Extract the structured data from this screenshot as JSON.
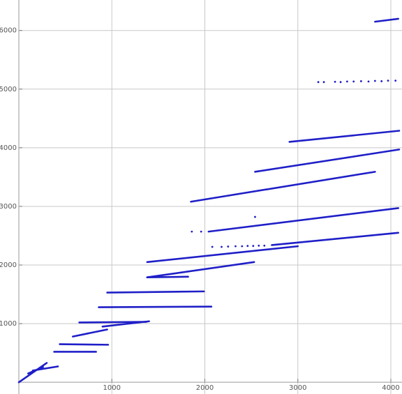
{
  "chart_data": {
    "type": "scatter",
    "xlim": [
      0,
      4120
    ],
    "ylim": [
      -200,
      6520
    ],
    "xticks": [
      1000,
      2000,
      3000,
      4000
    ],
    "yticks": [
      1000,
      2000,
      3000,
      4000,
      5000,
      6000
    ],
    "grid": true,
    "series": [
      {
        "color": "#1f1fc8",
        "line": true,
        "x": [
          3830,
          4080
        ],
        "y": [
          6150,
          6200
        ]
      },
      {
        "color": "#1f1fc8",
        "line": false,
        "x": [
          3220,
          3280,
          3400,
          3460,
          3530,
          3600,
          3680,
          3760,
          3830,
          3900,
          3970,
          4050
        ],
        "y": [
          5120,
          5120,
          5125,
          5120,
          5130,
          5130,
          5135,
          5130,
          5140,
          5135,
          5145,
          5145
        ]
      },
      {
        "color": "#1f1fc8",
        "line": true,
        "x": [
          2910,
          4090
        ],
        "y": [
          4100,
          4290
        ]
      },
      {
        "color": "#1f1fc8",
        "line": true,
        "x": [
          2540,
          4090
        ],
        "y": [
          3590,
          3970
        ]
      },
      {
        "color": "#1f1fc8",
        "line": true,
        "x": [
          1850,
          3830
        ],
        "y": [
          3080,
          3590
        ]
      },
      {
        "color": "#1f1fc8",
        "line": true,
        "x": [
          2040,
          4080
        ],
        "y": [
          2570,
          2970
        ]
      },
      {
        "color": "#1f1fc8",
        "line": false,
        "x": [
          1860,
          1960,
          2540
        ],
        "y": [
          2570,
          2570,
          2820
        ]
      },
      {
        "color": "#1f1fc8",
        "line": false,
        "x": [
          2080,
          2180,
          2250,
          2330,
          2400,
          2460,
          2520,
          2580,
          2640
        ],
        "y": [
          2310,
          2310,
          2315,
          2320,
          2320,
          2325,
          2325,
          2330,
          2330
        ]
      },
      {
        "color": "#1f1fc8",
        "line": true,
        "x": [
          2720,
          4080
        ],
        "y": [
          2340,
          2550
        ]
      },
      {
        "color": "#1f1fc8",
        "line": true,
        "x": [
          1380,
          3000
        ],
        "y": [
          2050,
          2320
        ]
      },
      {
        "color": "#1f1fc8",
        "line": true,
        "x": [
          1380,
          2530
        ],
        "y": [
          1790,
          2050
        ]
      },
      {
        "color": "#1f1fc8",
        "line": true,
        "x": [
          1380,
          1820
        ],
        "y": [
          1790,
          1800
        ]
      },
      {
        "color": "#1f1fc8",
        "line": true,
        "x": [
          950,
          1990
        ],
        "y": [
          1530,
          1550
        ]
      },
      {
        "color": "#1f1fc8",
        "line": true,
        "x": [
          860,
          2070
        ],
        "y": [
          1280,
          1290
        ]
      },
      {
        "color": "#1f1fc8",
        "line": true,
        "x": [
          650,
          1370
        ],
        "y": [
          1020,
          1030
        ]
      },
      {
        "color": "#1f1fc8",
        "line": true,
        "x": [
          900,
          1400
        ],
        "y": [
          950,
          1040
        ]
      },
      {
        "color": "#1f1fc8",
        "line": true,
        "x": [
          580,
          950
        ],
        "y": [
          780,
          900
        ]
      },
      {
        "color": "#1f1fc8",
        "line": true,
        "x": [
          440,
          960
        ],
        "y": [
          650,
          640
        ]
      },
      {
        "color": "#1f1fc8",
        "line": true,
        "x": [
          380,
          830
        ],
        "y": [
          520,
          520
        ]
      },
      {
        "color": "#1f1fc8",
        "line": true,
        "x": [
          0,
          300
        ],
        "y": [
          0,
          330
        ]
      },
      {
        "color": "#1f1fc8",
        "line": true,
        "x": [
          150,
          420
        ],
        "y": [
          200,
          270
        ]
      },
      {
        "color": "#1f1fc8",
        "line": true,
        "x": [
          100,
          260
        ],
        "y": [
          150,
          260
        ]
      }
    ]
  }
}
